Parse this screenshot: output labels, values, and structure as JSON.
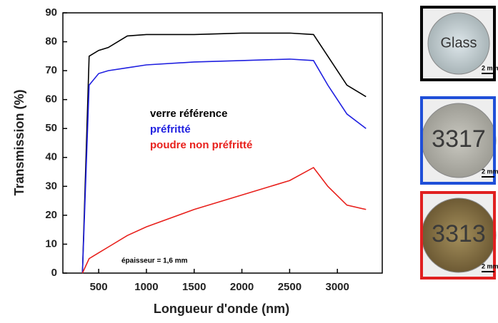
{
  "chart_data": {
    "type": "line",
    "x_label": "Longueur d'onde (nm)",
    "y_label": "Transmission (%)",
    "x": [
      330,
      400,
      500,
      600,
      800,
      1000,
      1500,
      2000,
      2500,
      2750,
      2900,
      3100,
      3300
    ],
    "series": [
      {
        "name": "verre référence",
        "color": "#000000",
        "values": [
          0,
          75,
          77,
          78,
          82,
          82.5,
          82.5,
          83,
          83,
          82.5,
          75,
          65,
          61
        ]
      },
      {
        "name": "préfritté",
        "color": "#1f1fe0",
        "values": [
          0,
          65,
          69,
          70,
          71,
          72,
          73,
          73.5,
          74,
          73.5,
          65,
          55,
          50
        ]
      },
      {
        "name": "poudre non préfritté",
        "color": "#e8201c",
        "values": [
          0,
          5,
          7,
          9,
          13,
          16,
          22,
          27,
          32,
          36.5,
          30,
          23.5,
          22
        ]
      }
    ],
    "annotation": "épaisseur = 1,6 mm",
    "xlim": [
      125,
      3470
    ],
    "ylim": [
      0,
      90
    ],
    "xticks": [
      500,
      1000,
      1500,
      2000,
      2500,
      3000
    ],
    "yticks": [
      0,
      10,
      20,
      30,
      40,
      50,
      60,
      70,
      80,
      90
    ]
  },
  "images": [
    {
      "label": "Glass",
      "scale": "2 mm",
      "frame": "#000000"
    },
    {
      "label": "3317",
      "scale": "2 mm",
      "frame": "#1f4fd8"
    },
    {
      "label": "3313",
      "scale": "2 mm",
      "frame": "#e02020"
    }
  ]
}
